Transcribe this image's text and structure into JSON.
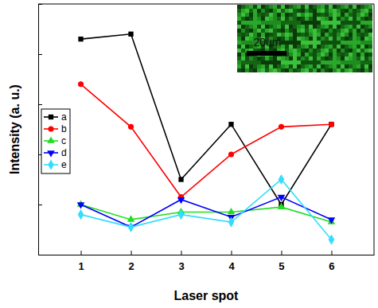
{
  "chart_data": {
    "type": "line",
    "x_label": "Laser spot",
    "y_label": "Intensity (a. u.)",
    "annotations": [
      "20um"
    ],
    "categories": [
      "1",
      "2",
      "3",
      "4",
      "5",
      "6"
    ],
    "ylim": [
      0,
      100
    ],
    "yticks": [
      0,
      20,
      40,
      60,
      80,
      100
    ],
    "tick_labels": "x",
    "legend": "center left",
    "grid": false,
    "series": [
      {
        "name": "a",
        "color": "#000000",
        "marker": "square",
        "values": [
          86,
          88,
          30,
          52,
          20,
          52
        ]
      },
      {
        "name": "b",
        "color": "#ff0000",
        "marker": "circle",
        "values": [
          68,
          51,
          23,
          40,
          51,
          52
        ]
      },
      {
        "name": "c",
        "color": "#22dd22",
        "marker": "triangle",
        "values": [
          20,
          14,
          17,
          17,
          19,
          13
        ]
      },
      {
        "name": "d",
        "color": "#0000ff",
        "marker": "triangle-down",
        "values": [
          20,
          11,
          22,
          15,
          23,
          14
        ]
      },
      {
        "name": "e",
        "color": "#33ddff",
        "marker": "diamond",
        "values": [
          16,
          11,
          16,
          13,
          30,
          6
        ]
      }
    ]
  }
}
